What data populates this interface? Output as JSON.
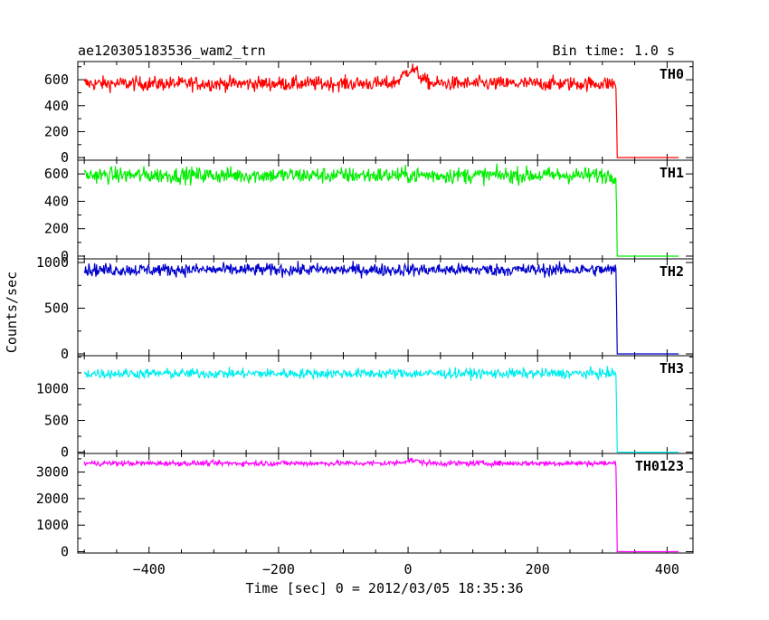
{
  "chart_data": {
    "type": "line",
    "title": "ae120305183536_wam2_trn",
    "bin_time_label": "Bin time: 1.0 s",
    "xlabel": "Time [sec] 0 = 2012/03/05 18:35:36",
    "ylabel": "Counts/sec",
    "xlim": [
      -510,
      440
    ],
    "x_ticks": [
      -400,
      -200,
      0,
      200,
      400
    ],
    "x_tick_labels": [
      "−400",
      "−200",
      "0",
      "200",
      "400"
    ],
    "cutoff_time": 322,
    "end_time": 418,
    "start_time": -500,
    "grid": false,
    "panels": [
      {
        "name": "TH0",
        "color": "#ff0000",
        "ylim": [
          -20,
          740
        ],
        "y_ticks": [
          0,
          200,
          400,
          600
        ],
        "y_tick_labels": [
          "0",
          "200",
          "400",
          "600"
        ],
        "level": 570,
        "noise": 28,
        "bump": {
          "time": 5,
          "width": 12,
          "height": 110
        }
      },
      {
        "name": "TH1",
        "color": "#00ee00",
        "ylim": [
          -20,
          700
        ],
        "y_ticks": [
          0,
          200,
          400,
          600
        ],
        "y_tick_labels": [
          "0",
          "200",
          "400",
          "600"
        ],
        "level": 590,
        "noise": 30
      },
      {
        "name": "TH2",
        "color": "#0000cc",
        "ylim": [
          -20,
          1040
        ],
        "y_ticks": [
          0,
          500,
          1000
        ],
        "y_tick_labels": [
          "0",
          "500",
          "1000"
        ],
        "level": 920,
        "noise": 35
      },
      {
        "name": "TH3",
        "color": "#00eeee",
        "ylim": [
          -20,
          1520
        ],
        "y_ticks": [
          0,
          500,
          1000
        ],
        "y_tick_labels": [
          "0",
          "500",
          "1000"
        ],
        "level": 1240,
        "noise": 40
      },
      {
        "name": "TH0123",
        "color": "#ff00ff",
        "ylim": [
          -50,
          3700
        ],
        "y_ticks": [
          0,
          1000,
          2000,
          3000
        ],
        "y_tick_labels": [
          "0",
          "1000",
          "2000",
          "3000"
        ],
        "level": 3330,
        "noise": 50,
        "bump": {
          "time": 5,
          "width": 12,
          "height": 110
        }
      }
    ]
  }
}
